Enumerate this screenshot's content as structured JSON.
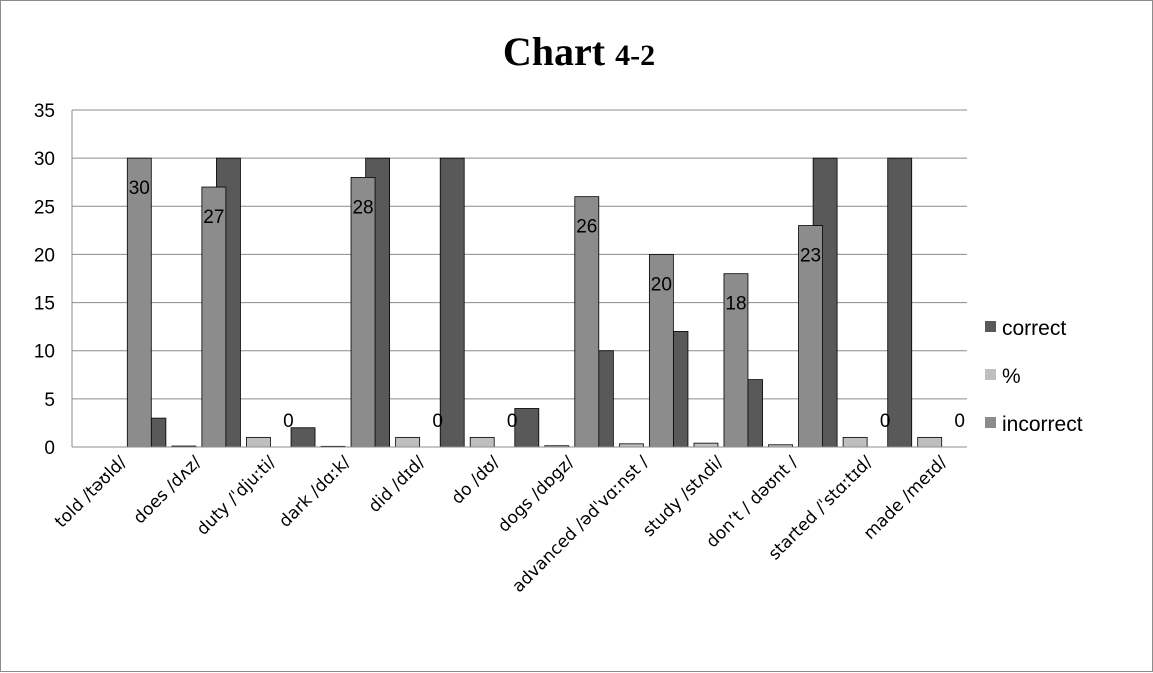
{
  "chart_data": {
    "type": "bar",
    "title": "Chart",
    "title_suffix": "4-2",
    "xlabel": "",
    "ylabel": "",
    "ylim": [
      0,
      35
    ],
    "yticks": [
      0,
      5,
      10,
      15,
      20,
      25,
      30,
      35
    ],
    "grid": true,
    "legend_position": "right",
    "categories": [
      "told /təʊld/",
      "does /dʌz/",
      "duty /ˈdjuːti/",
      "dark /dɑːk/",
      "did /dɪd/",
      "do /dʊ/",
      "dogs /dɒgz/",
      "advanced /ədˈvɑːnst /",
      "study /stʌdi/",
      "don’t / dəʊnt /",
      "started /ˈstɑːtɪd/",
      "made /meɪd/"
    ],
    "series": [
      {
        "name": "correct",
        "color": "#595959",
        "values": [
          0,
          3,
          30,
          2,
          30,
          30,
          4,
          10,
          12,
          7,
          30,
          30
        ]
      },
      {
        "name": "%",
        "color": "#bfbfbf",
        "values": [
          0,
          0.1,
          1,
          0.07,
          1,
          1,
          0.13,
          0.33,
          0.4,
          0.23,
          1,
          1
        ]
      },
      {
        "name": "incorrect",
        "color": "#8c8c8c",
        "values": [
          30,
          27,
          0,
          28,
          0,
          0,
          26,
          20,
          18,
          23,
          0,
          0
        ]
      }
    ],
    "data_labels": {
      "series": "incorrect",
      "values": [
        "30",
        "27",
        "0",
        "28",
        "0",
        "0",
        "26",
        "20",
        "18",
        "23",
        "0",
        "0"
      ]
    }
  }
}
